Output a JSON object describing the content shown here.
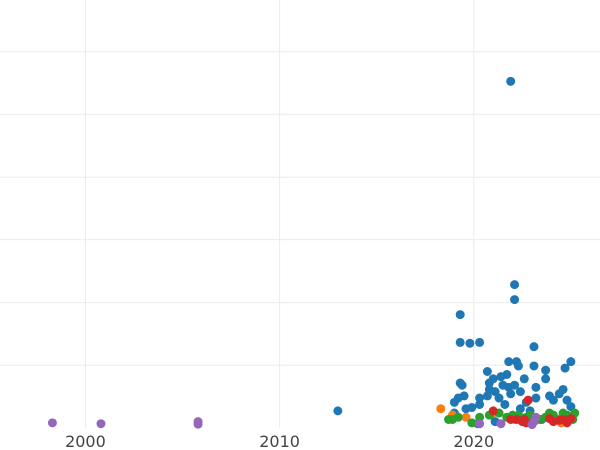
{
  "chart_data": {
    "type": "scatter",
    "title": "",
    "xlabel": "",
    "ylabel": "",
    "xlim": [
      1995.6,
      2026.5
    ],
    "ylim": [
      0,
      1
    ],
    "x_ticks": [
      2000,
      2010,
      2020
    ],
    "x_tick_labels": [
      "2000",
      "2010",
      "2020"
    ],
    "y_gridlines": [
      0.147,
      0.293,
      0.44,
      0.586,
      0.733,
      0.879
    ],
    "grid": true,
    "legend": "none",
    "series": [
      {
        "color": "#1f77b4",
        "points": [
          [
            2013.0,
            0.04
          ],
          [
            2019.3,
            0.265
          ],
          [
            2019.3,
            0.2
          ],
          [
            2019.3,
            0.105
          ],
          [
            2019.4,
            0.1
          ],
          [
            2019.2,
            0.07
          ],
          [
            2019.5,
            0.075
          ],
          [
            2019.8,
            0.198
          ],
          [
            2019.0,
            0.06
          ],
          [
            2019.6,
            0.045
          ],
          [
            2019.9,
            0.048
          ],
          [
            2020.3,
            0.2
          ],
          [
            2020.3,
            0.07
          ],
          [
            2020.3,
            0.055
          ],
          [
            2020.7,
            0.132
          ],
          [
            2020.8,
            0.105
          ],
          [
            2020.8,
            0.09
          ],
          [
            2020.7,
            0.075
          ],
          [
            2021.0,
            0.115
          ],
          [
            2021.1,
            0.085
          ],
          [
            2021.4,
            0.12
          ],
          [
            2021.5,
            0.1
          ],
          [
            2021.3,
            0.07
          ],
          [
            2021.6,
            0.055
          ],
          [
            2021.7,
            0.125
          ],
          [
            2021.8,
            0.155
          ],
          [
            2021.8,
            0.095
          ],
          [
            2021.9,
            0.08
          ],
          [
            2021.9,
            0.81
          ],
          [
            2022.1,
            0.335
          ],
          [
            2022.1,
            0.3
          ],
          [
            2022.2,
            0.155
          ],
          [
            2022.3,
            0.145
          ],
          [
            2022.1,
            0.1
          ],
          [
            2022.4,
            0.085
          ],
          [
            2022.6,
            0.115
          ],
          [
            2022.7,
            0.06
          ],
          [
            2022.4,
            0.045
          ],
          [
            2023.1,
            0.19
          ],
          [
            2023.1,
            0.145
          ],
          [
            2023.2,
            0.095
          ],
          [
            2023.2,
            0.07
          ],
          [
            2023.7,
            0.135
          ],
          [
            2023.7,
            0.115
          ],
          [
            2023.9,
            0.075
          ],
          [
            2024.1,
            0.065
          ],
          [
            2024.4,
            0.08
          ],
          [
            2024.6,
            0.09
          ],
          [
            2024.7,
            0.14
          ],
          [
            2024.8,
            0.065
          ],
          [
            2025.0,
            0.155
          ],
          [
            2025.0,
            0.05
          ],
          [
            2019.0,
            0.035
          ],
          [
            2022.9,
            0.04
          ],
          [
            2020.2,
            0.01
          ],
          [
            2021.1,
            0.015
          ],
          [
            2023.5,
            0.02
          ]
        ]
      },
      {
        "color": "#ff7f0e",
        "points": [
          [
            2018.3,
            0.045
          ],
          [
            2018.9,
            0.03
          ],
          [
            2019.6,
            0.025
          ],
          [
            2021.0,
            0.035
          ],
          [
            2022.1,
            0.02
          ],
          [
            2023.1,
            0.018
          ],
          [
            2023.7,
            0.025
          ],
          [
            2024.5,
            0.012
          ]
        ]
      },
      {
        "color": "#2ca02c",
        "points": [
          [
            2018.7,
            0.02
          ],
          [
            2018.9,
            0.02
          ],
          [
            2019.2,
            0.025
          ],
          [
            2019.9,
            0.012
          ],
          [
            2020.3,
            0.025
          ],
          [
            2020.8,
            0.03
          ],
          [
            2021.3,
            0.035
          ],
          [
            2021.7,
            0.025
          ],
          [
            2022.0,
            0.03
          ],
          [
            2022.3,
            0.03
          ],
          [
            2022.7,
            0.025
          ],
          [
            2022.9,
            0.03
          ],
          [
            2023.2,
            0.02
          ],
          [
            2023.4,
            0.02
          ],
          [
            2023.7,
            0.025
          ],
          [
            2023.9,
            0.035
          ],
          [
            2024.1,
            0.03
          ],
          [
            2024.4,
            0.02
          ],
          [
            2024.6,
            0.035
          ],
          [
            2024.8,
            0.03
          ],
          [
            2025.0,
            0.025
          ],
          [
            2025.1,
            0.02
          ],
          [
            2025.2,
            0.035
          ]
        ]
      },
      {
        "color": "#d62728",
        "points": [
          [
            2021.0,
            0.04
          ],
          [
            2021.9,
            0.02
          ],
          [
            2022.2,
            0.02
          ],
          [
            2022.5,
            0.015
          ],
          [
            2022.6,
            0.02
          ],
          [
            2022.7,
            0.012
          ],
          [
            2022.8,
            0.065
          ],
          [
            2023.1,
            0.015
          ],
          [
            2023.9,
            0.022
          ],
          [
            2024.1,
            0.015
          ],
          [
            2024.4,
            0.018
          ],
          [
            2024.6,
            0.02
          ],
          [
            2024.8,
            0.012
          ],
          [
            2025.0,
            0.022
          ]
        ]
      },
      {
        "color": "#9467bd",
        "points": [
          [
            1998.3,
            0.012
          ],
          [
            2000.8,
            0.01
          ],
          [
            2005.8,
            0.015
          ],
          [
            2005.8,
            0.009
          ],
          [
            2020.3,
            0.01
          ],
          [
            2021.4,
            0.01
          ],
          [
            2023.0,
            0.008
          ],
          [
            2023.1,
            0.015
          ],
          [
            2023.2,
            0.025
          ]
        ]
      }
    ]
  }
}
